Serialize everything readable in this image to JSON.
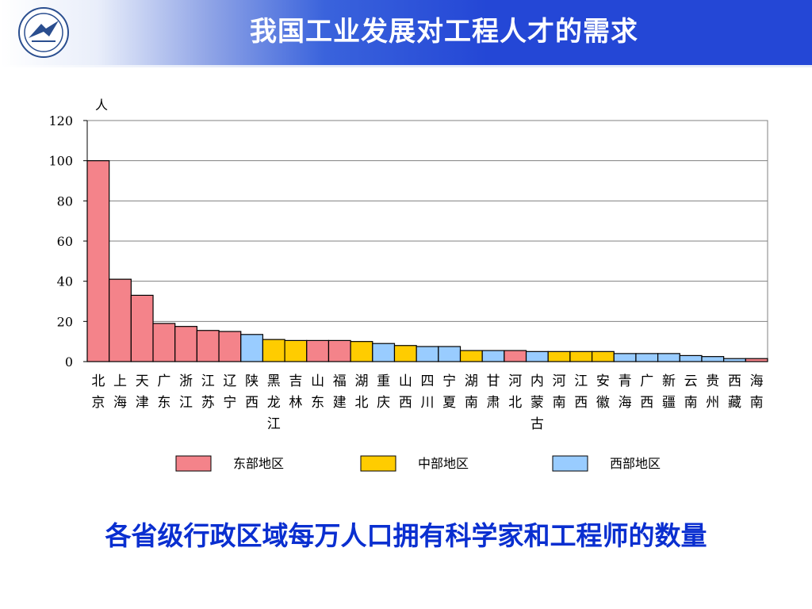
{
  "header": {
    "title": "我国工业发展对工程人才的需求"
  },
  "caption": "各省级行政区域每万人口拥有科学家和工程师的数量",
  "colors": {
    "east": "#f4838a",
    "central": "#ffcc00",
    "west": "#99ccff",
    "stroke": "#000000"
  },
  "chart_data": {
    "type": "bar",
    "ylabel": "人",
    "ylim": [
      0,
      120
    ],
    "yticks": [
      0,
      20,
      40,
      60,
      80,
      100,
      120
    ],
    "grid": true,
    "legend_position": "bottom",
    "legend": [
      {
        "key": "east",
        "label": "东部地区"
      },
      {
        "key": "central",
        "label": "中部地区"
      },
      {
        "key": "west",
        "label": "西部地区"
      }
    ],
    "categories": [
      {
        "name": "北京",
        "value": 100,
        "region": "east"
      },
      {
        "name": "上海",
        "value": 41,
        "region": "east"
      },
      {
        "name": "天津",
        "value": 33,
        "region": "east"
      },
      {
        "name": "广东",
        "value": 19,
        "region": "east"
      },
      {
        "name": "浙江",
        "value": 17.5,
        "region": "east"
      },
      {
        "name": "江苏",
        "value": 15.5,
        "region": "east"
      },
      {
        "name": "辽宁",
        "value": 15,
        "region": "east"
      },
      {
        "name": "陕西",
        "value": 13.5,
        "region": "west"
      },
      {
        "name": "黑龙江",
        "value": 11,
        "region": "central"
      },
      {
        "name": "吉林",
        "value": 10.5,
        "region": "central"
      },
      {
        "name": "山东",
        "value": 10.5,
        "region": "east"
      },
      {
        "name": "福建",
        "value": 10.5,
        "region": "east"
      },
      {
        "name": "湖北",
        "value": 10,
        "region": "central"
      },
      {
        "name": "重庆",
        "value": 9,
        "region": "west"
      },
      {
        "name": "山西",
        "value": 8,
        "region": "central"
      },
      {
        "name": "四川",
        "value": 7.5,
        "region": "west"
      },
      {
        "name": "宁夏",
        "value": 7.5,
        "region": "west"
      },
      {
        "name": "湖南",
        "value": 5.5,
        "region": "central"
      },
      {
        "name": "甘肃",
        "value": 5.5,
        "region": "west"
      },
      {
        "name": "河北",
        "value": 5.5,
        "region": "east"
      },
      {
        "name": "内蒙古",
        "value": 5,
        "region": "west"
      },
      {
        "name": "河南",
        "value": 5,
        "region": "central"
      },
      {
        "name": "江西",
        "value": 5,
        "region": "central"
      },
      {
        "name": "安徽",
        "value": 5,
        "region": "central"
      },
      {
        "name": "青海",
        "value": 4,
        "region": "west"
      },
      {
        "name": "广西",
        "value": 4,
        "region": "west"
      },
      {
        "name": "新疆",
        "value": 4,
        "region": "west"
      },
      {
        "name": "云南",
        "value": 3,
        "region": "west"
      },
      {
        "name": "贵州",
        "value": 2.5,
        "region": "west"
      },
      {
        "name": "西藏",
        "value": 1.5,
        "region": "west"
      },
      {
        "name": "海南",
        "value": 1.5,
        "region": "east"
      }
    ]
  }
}
